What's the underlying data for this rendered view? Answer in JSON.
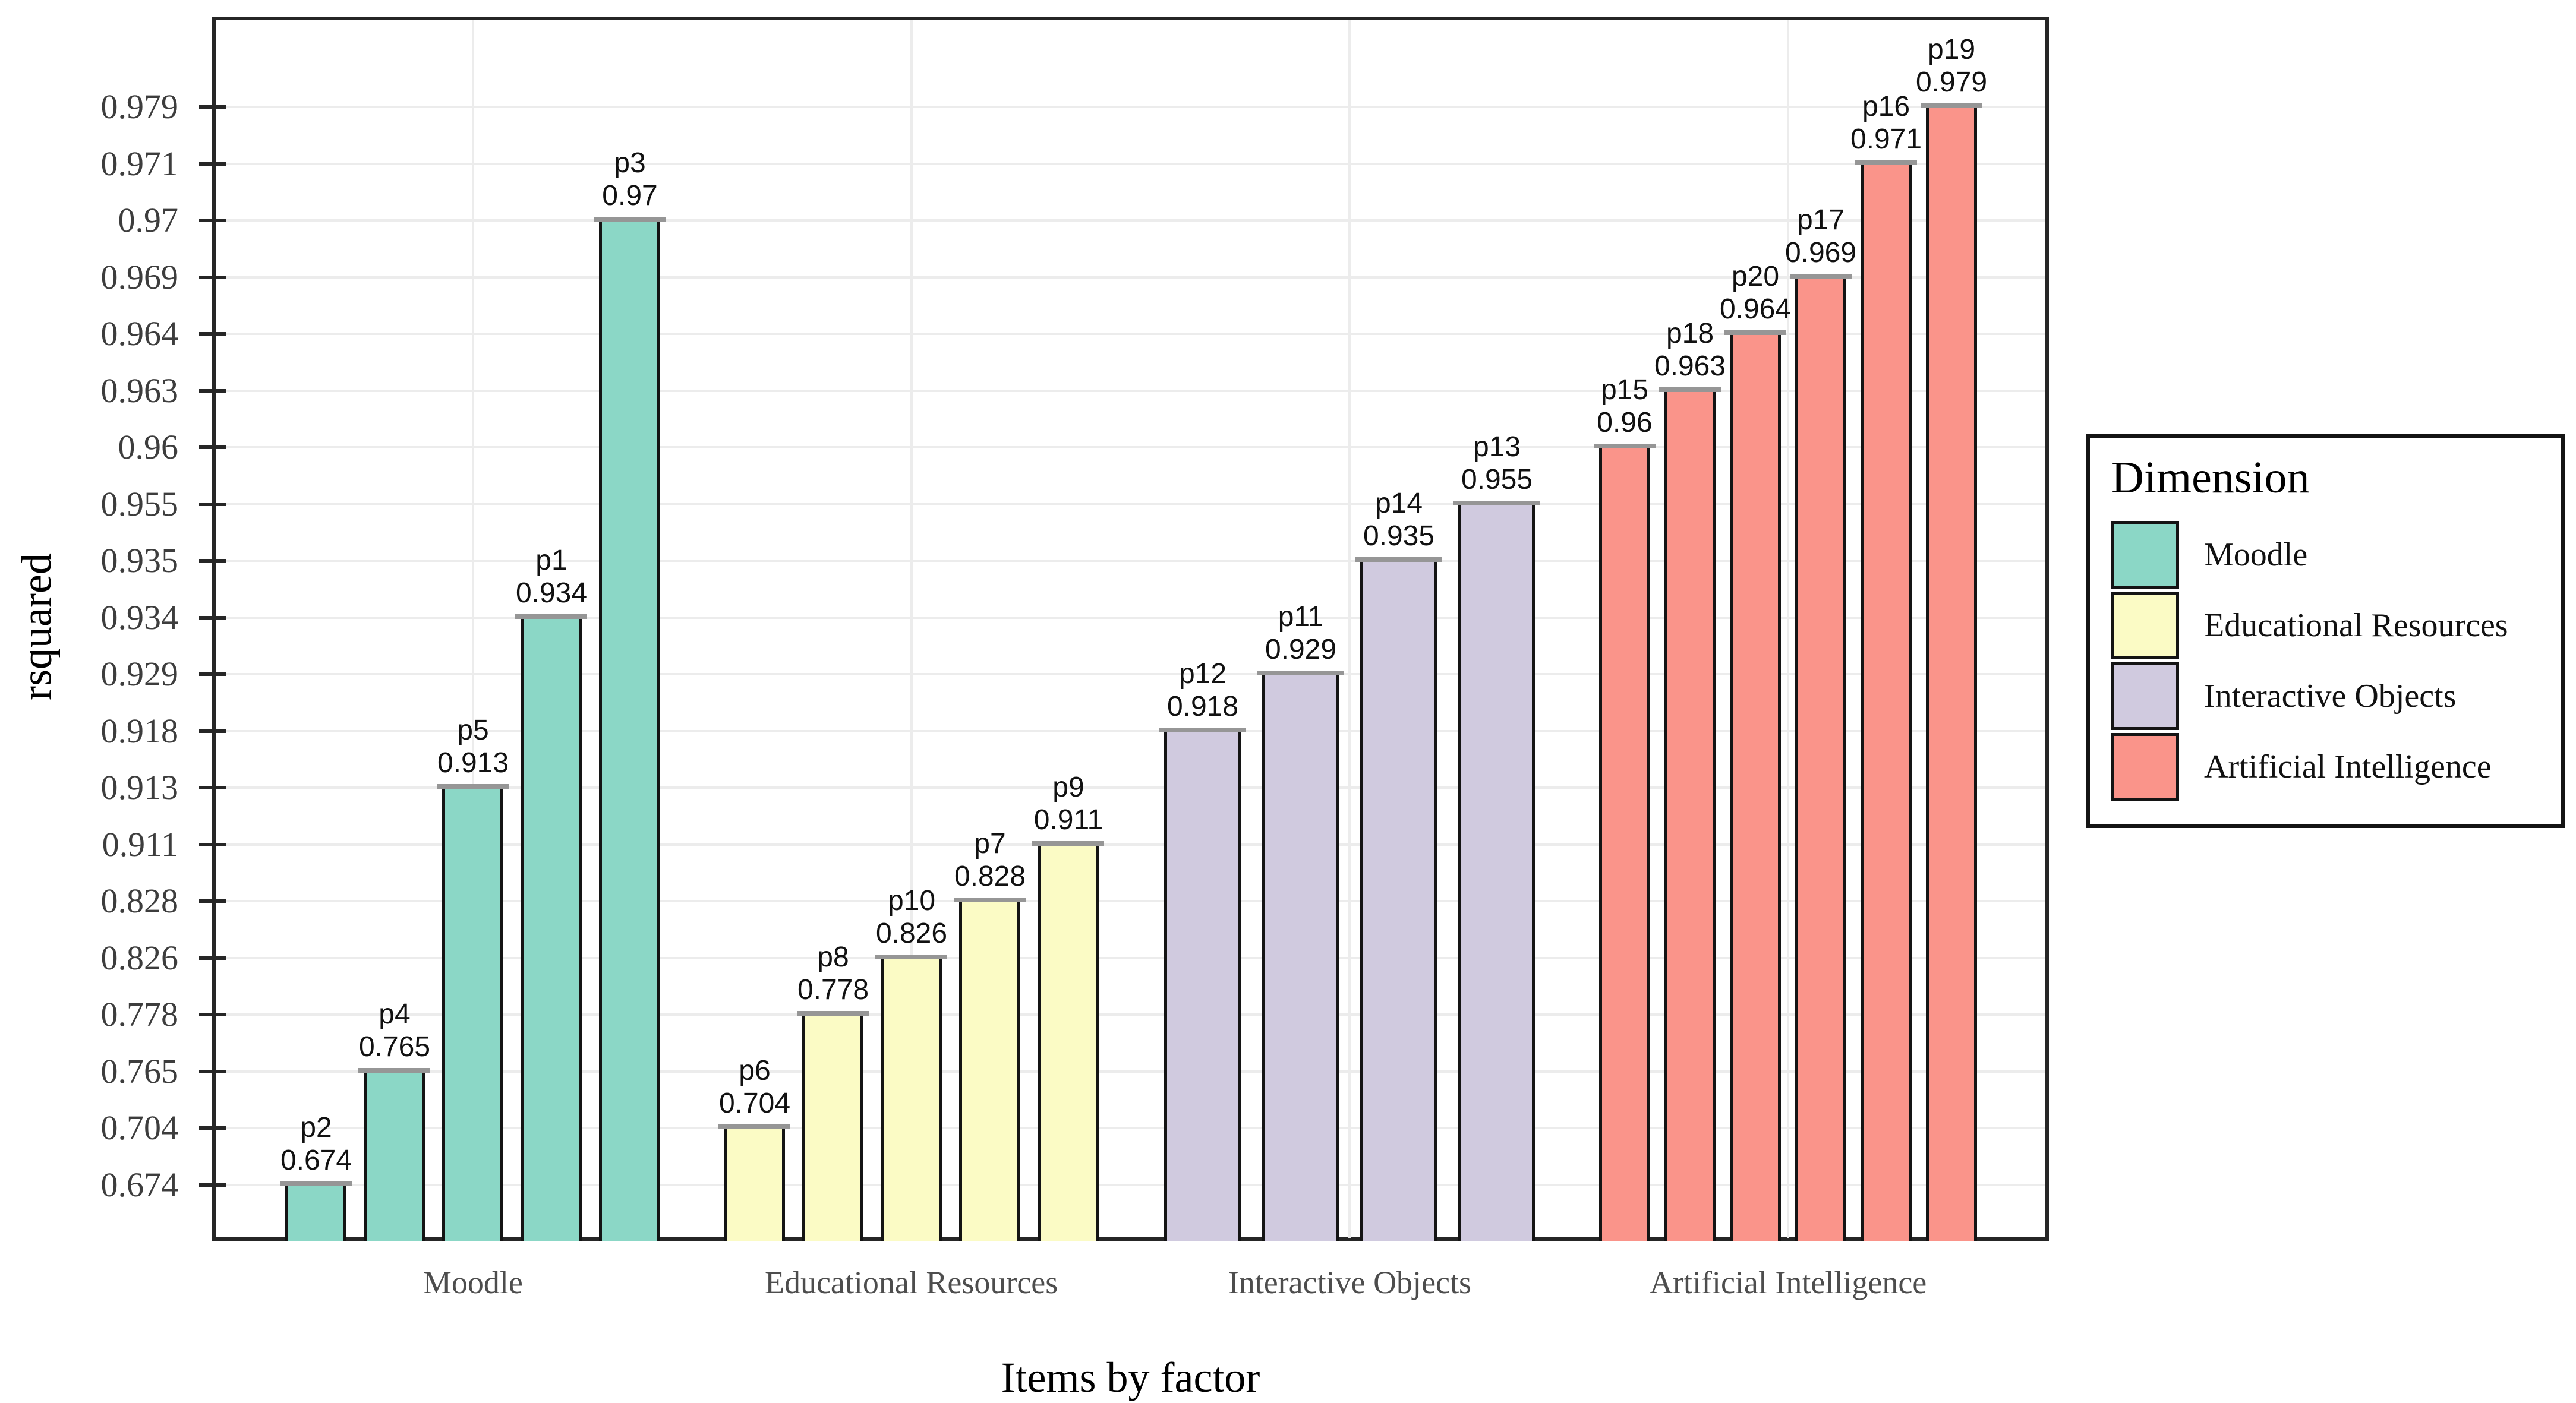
{
  "chart_data": {
    "type": "bar",
    "title": "",
    "xlabel": "Items by factor",
    "ylabel": "rsquared",
    "legend_title": "Dimension",
    "legend_position": "right",
    "grid": true,
    "y_axis_kind": "ordinal (one tick per sorted bar value)",
    "y_ticks": [
      "0.979",
      "0.971",
      "0.97",
      "0.969",
      "0.964",
      "0.963",
      "0.96",
      "0.955",
      "0.935",
      "0.934",
      "0.929",
      "0.918",
      "0.913",
      "0.911",
      "0.828",
      "0.826",
      "0.778",
      "0.765",
      "0.704",
      "0.674"
    ],
    "categories": [
      "Moodle",
      "Educational Resources",
      "Interactive Objects",
      "Artificial Intelligence"
    ],
    "groups": [
      {
        "dimension": "Moodle",
        "color": "#8BD7C6",
        "items": [
          {
            "id": "p2",
            "value": 0.674,
            "label": "0.674"
          },
          {
            "id": "p4",
            "value": 0.765,
            "label": "0.765"
          },
          {
            "id": "p5",
            "value": 0.913,
            "label": "0.913"
          },
          {
            "id": "p1",
            "value": 0.934,
            "label": "0.934"
          },
          {
            "id": "p3",
            "value": 0.97,
            "label": "0.97"
          }
        ]
      },
      {
        "dimension": "Educational Resources",
        "color": "#FBFBC5",
        "items": [
          {
            "id": "p6",
            "value": 0.704,
            "label": "0.704"
          },
          {
            "id": "p8",
            "value": 0.778,
            "label": "0.778"
          },
          {
            "id": "p10",
            "value": 0.826,
            "label": "0.826"
          },
          {
            "id": "p7",
            "value": 0.828,
            "label": "0.828"
          },
          {
            "id": "p9",
            "value": 0.911,
            "label": "0.911"
          }
        ]
      },
      {
        "dimension": "Interactive Objects",
        "color": "#D0CADF",
        "items": [
          {
            "id": "p12",
            "value": 0.918,
            "label": "0.918"
          },
          {
            "id": "p11",
            "value": 0.929,
            "label": "0.929"
          },
          {
            "id": "p14",
            "value": 0.935,
            "label": "0.935"
          },
          {
            "id": "p13",
            "value": 0.955,
            "label": "0.955"
          }
        ]
      },
      {
        "dimension": "Artificial Intelligence",
        "color": "#FA948A",
        "items": [
          {
            "id": "p15",
            "value": 0.96,
            "label": "0.96"
          },
          {
            "id": "p18",
            "value": 0.963,
            "label": "0.963"
          },
          {
            "id": "p20",
            "value": 0.964,
            "label": "0.964"
          },
          {
            "id": "p17",
            "value": 0.969,
            "label": "0.969"
          },
          {
            "id": "p16",
            "value": 0.971,
            "label": "0.971"
          },
          {
            "id": "p19",
            "value": 0.979,
            "label": "0.979"
          }
        ]
      }
    ]
  },
  "colors": {
    "bar_border": "#141414",
    "bar_cap": "#969696",
    "grid": "#ECECEC",
    "axis": "#262626",
    "tick_text": "#3D3D3D",
    "category_text": "#4D4D4D"
  }
}
